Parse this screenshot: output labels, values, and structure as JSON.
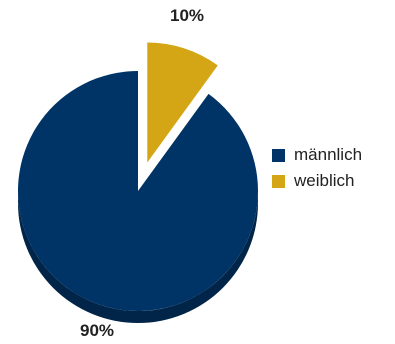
{
  "chart_data": {
    "type": "pie",
    "title": "",
    "categories": [
      "männlich",
      "weiblich"
    ],
    "values": [
      90,
      10
    ],
    "data_labels": [
      "90%",
      "10%"
    ],
    "colors": [
      "#003366",
      "#D4A514"
    ],
    "style": "3d-exploded",
    "exploded": "weiblich",
    "legend": "right"
  }
}
